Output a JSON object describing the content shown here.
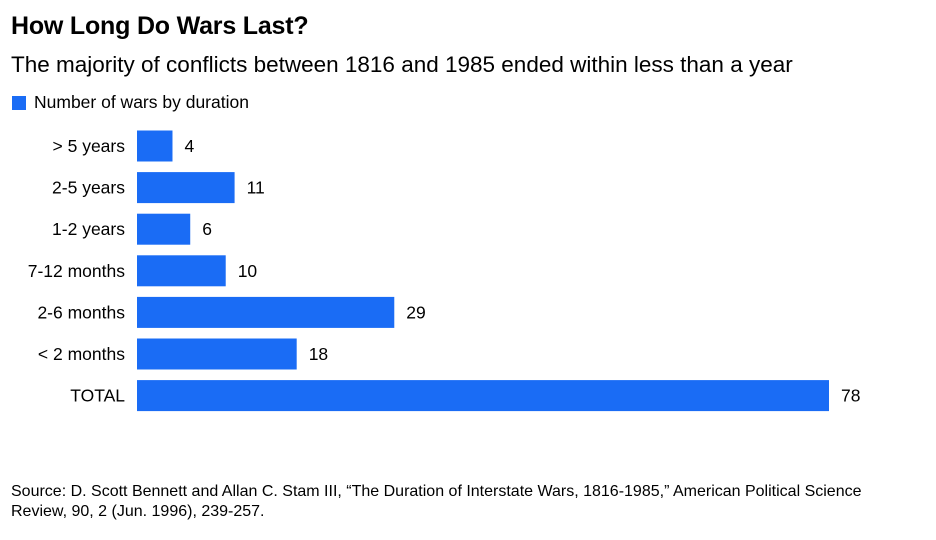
{
  "chart_data": {
    "type": "bar",
    "orientation": "horizontal",
    "title": "How Long Do Wars Last?",
    "subtitle": "The majority of conflicts between 1816 and 1985 ended within less than a year",
    "categories": [
      "> 5 years",
      "2-5 years",
      "1-2 years",
      "7-12 months",
      "2-6 months",
      "< 2 months",
      "TOTAL"
    ],
    "series": [
      {
        "name": "Number of wars by duration",
        "values": [
          4,
          11,
          6,
          10,
          29,
          18,
          78
        ],
        "color": "#1a6cf5"
      }
    ],
    "xlim": [
      0,
      78
    ],
    "grid": false,
    "legend_position": "top-left",
    "data_labels": true
  },
  "source": "Source: D. Scott Bennett and Allan C. Stam III, “The Duration of Interstate Wars, 1816-1985,” American Political Science Review, 90, 2 (Jun. 1996), 239-257."
}
